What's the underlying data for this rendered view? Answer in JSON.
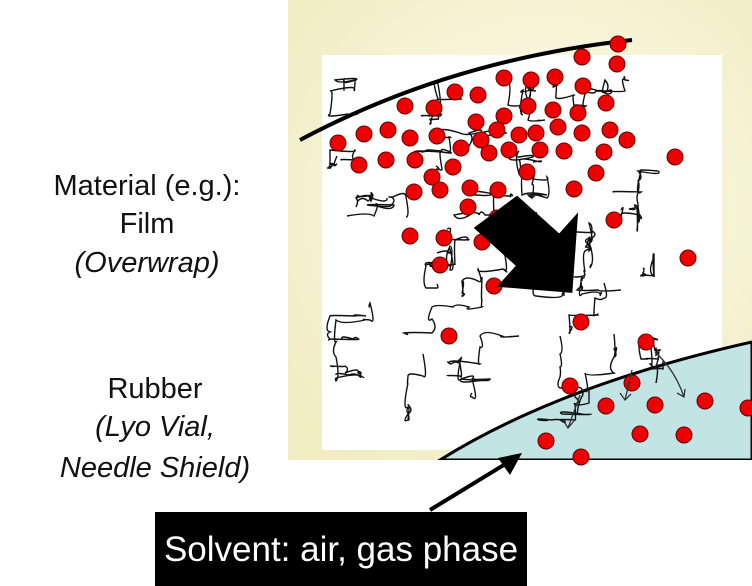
{
  "labels": {
    "material": "Material (e.g.):",
    "film": "Film",
    "film_example": "(Overwrap)",
    "rubber": "Rubber",
    "rubber_example_1": "(Lyo Vial,",
    "rubber_example_2": "Needle Shield)"
  },
  "solvent_label": "Solvent: air, gas phase"
}
